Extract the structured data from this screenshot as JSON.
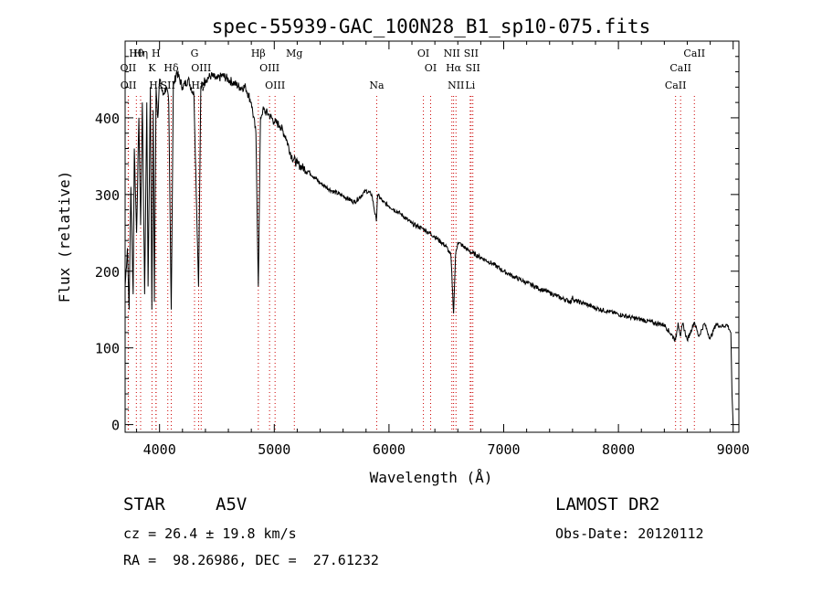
{
  "chart_data": {
    "type": "line",
    "title": "spec-55939-GAC_100N28_B1_sp10-075.fits",
    "xlabel": "Wavelength (Å)",
    "ylabel": "Flux (relative)",
    "xlim": [
      3700,
      9050
    ],
    "ylim": [
      -10,
      500
    ],
    "x_ticks": [
      4000,
      5000,
      6000,
      7000,
      8000,
      9000
    ],
    "x_tick_labels": [
      "4000",
      "5000",
      "6000",
      "7000",
      "8000",
      "9000"
    ],
    "y_ticks": [
      0,
      100,
      200,
      300,
      400
    ],
    "y_tick_labels": [
      "0",
      "100",
      "200",
      "300",
      "400"
    ],
    "series": [
      {
        "name": "flux",
        "x": [
          3700,
          3720,
          3735,
          3750,
          3770,
          3780,
          3800,
          3820,
          3835,
          3850,
          3870,
          3889,
          3900,
          3920,
          3933,
          3945,
          3955,
          3970,
          3985,
          4000,
          4030,
          4060,
          4080,
          4102,
          4120,
          4150,
          4200,
          4250,
          4300,
          4340,
          4360,
          4400,
          4450,
          4500,
          4550,
          4600,
          4650,
          4700,
          4750,
          4800,
          4840,
          4861,
          4880,
          4900,
          4950,
          5000,
          5050,
          5100,
          5150,
          5200,
          5300,
          5400,
          5500,
          5600,
          5700,
          5800,
          5850,
          5890,
          5900,
          5950,
          6000,
          6100,
          6200,
          6300,
          6400,
          6500,
          6540,
          6563,
          6580,
          6600,
          6700,
          6800,
          6900,
          7000,
          7100,
          7200,
          7300,
          7400,
          7500,
          7590,
          7600,
          7610,
          7700,
          7800,
          7900,
          8000,
          8100,
          8200,
          8300,
          8400,
          8498,
          8520,
          8542,
          8560,
          8600,
          8662,
          8700,
          8750,
          8800,
          8850,
          8900,
          8950,
          8980,
          8990,
          9000
        ],
        "values": [
          180,
          230,
          150,
          310,
          170,
          360,
          250,
          400,
          260,
          420,
          170,
          420,
          180,
          440,
          150,
          410,
          160,
          440,
          400,
          450,
          430,
          440,
          420,
          150,
          440,
          460,
          440,
          450,
          430,
          180,
          440,
          450,
          455,
          450,
          455,
          450,
          445,
          440,
          440,
          420,
          380,
          180,
          400,
          410,
          405,
          395,
          390,
          375,
          350,
          340,
          330,
          315,
          305,
          298,
          290,
          305,
          300,
          265,
          300,
          290,
          285,
          275,
          262,
          255,
          245,
          232,
          220,
          145,
          220,
          238,
          226,
          218,
          210,
          200,
          192,
          185,
          178,
          172,
          165,
          160,
          168,
          162,
          158,
          152,
          148,
          144,
          140,
          137,
          133,
          130,
          110,
          133,
          115,
          132,
          110,
          134,
          115,
          132,
          112,
          131,
          128,
          130,
          120,
          40,
          0
        ]
      }
    ],
    "line_marks": [
      {
        "label": "Hθ",
        "x": 3798,
        "row": 1
      },
      {
        "label": "OII",
        "x": 3727,
        "row": 2
      },
      {
        "label": "OII",
        "x": 3729,
        "row": 3
      },
      {
        "label": "K",
        "x": 3934,
        "row": 2
      },
      {
        "label": "Hη",
        "x": 3835,
        "row": 1
      },
      {
        "label": "Hε",
        "x": 3970,
        "row": 3
      },
      {
        "label": "H",
        "x": 3969,
        "row": 1
      },
      {
        "label": "Hδ",
        "x": 4102,
        "row": 2
      },
      {
        "label": "SII",
        "x": 4072,
        "row": 3
      },
      {
        "label": "G",
        "x": 4305,
        "row": 1
      },
      {
        "label": "OIII",
        "x": 4363,
        "row": 2
      },
      {
        "label": "Hγ",
        "x": 4341,
        "row": 3
      },
      {
        "label": "Hβ",
        "x": 4861,
        "row": 1
      },
      {
        "label": "OIII",
        "x": 4959,
        "row": 2
      },
      {
        "label": "OIII",
        "x": 5007,
        "row": 3
      },
      {
        "label": "Mg",
        "x": 5175,
        "row": 1
      },
      {
        "label": "Na",
        "x": 5893,
        "row": 3
      },
      {
        "label": "OI",
        "x": 6300,
        "row": 1
      },
      {
        "label": "OI",
        "x": 6363,
        "row": 2
      },
      {
        "label": "NII",
        "x": 6548,
        "row": 1
      },
      {
        "label": "Hα",
        "x": 6563,
        "row": 2
      },
      {
        "label": "NII",
        "x": 6584,
        "row": 3
      },
      {
        "label": "SII",
        "x": 6716,
        "row": 1
      },
      {
        "label": "SII",
        "x": 6731,
        "row": 2
      },
      {
        "label": "Li",
        "x": 6708,
        "row": 3
      },
      {
        "label": "CaII",
        "x": 8662,
        "row": 1
      },
      {
        "label": "CaII",
        "x": 8542,
        "row": 2
      },
      {
        "label": "CaII",
        "x": 8498,
        "row": 3
      }
    ]
  },
  "info": {
    "class_label": "STAR",
    "subclass": "A5V",
    "survey": "LAMOST DR2",
    "cz_text": "cz = 26.4 ± 19.8 km/s",
    "obs_date": "Obs-Date: 20120112",
    "coords": "RA =  98.26986, DEC =  27.61232"
  },
  "colors": {
    "line": "#000000",
    "marker": "#cc0000"
  }
}
